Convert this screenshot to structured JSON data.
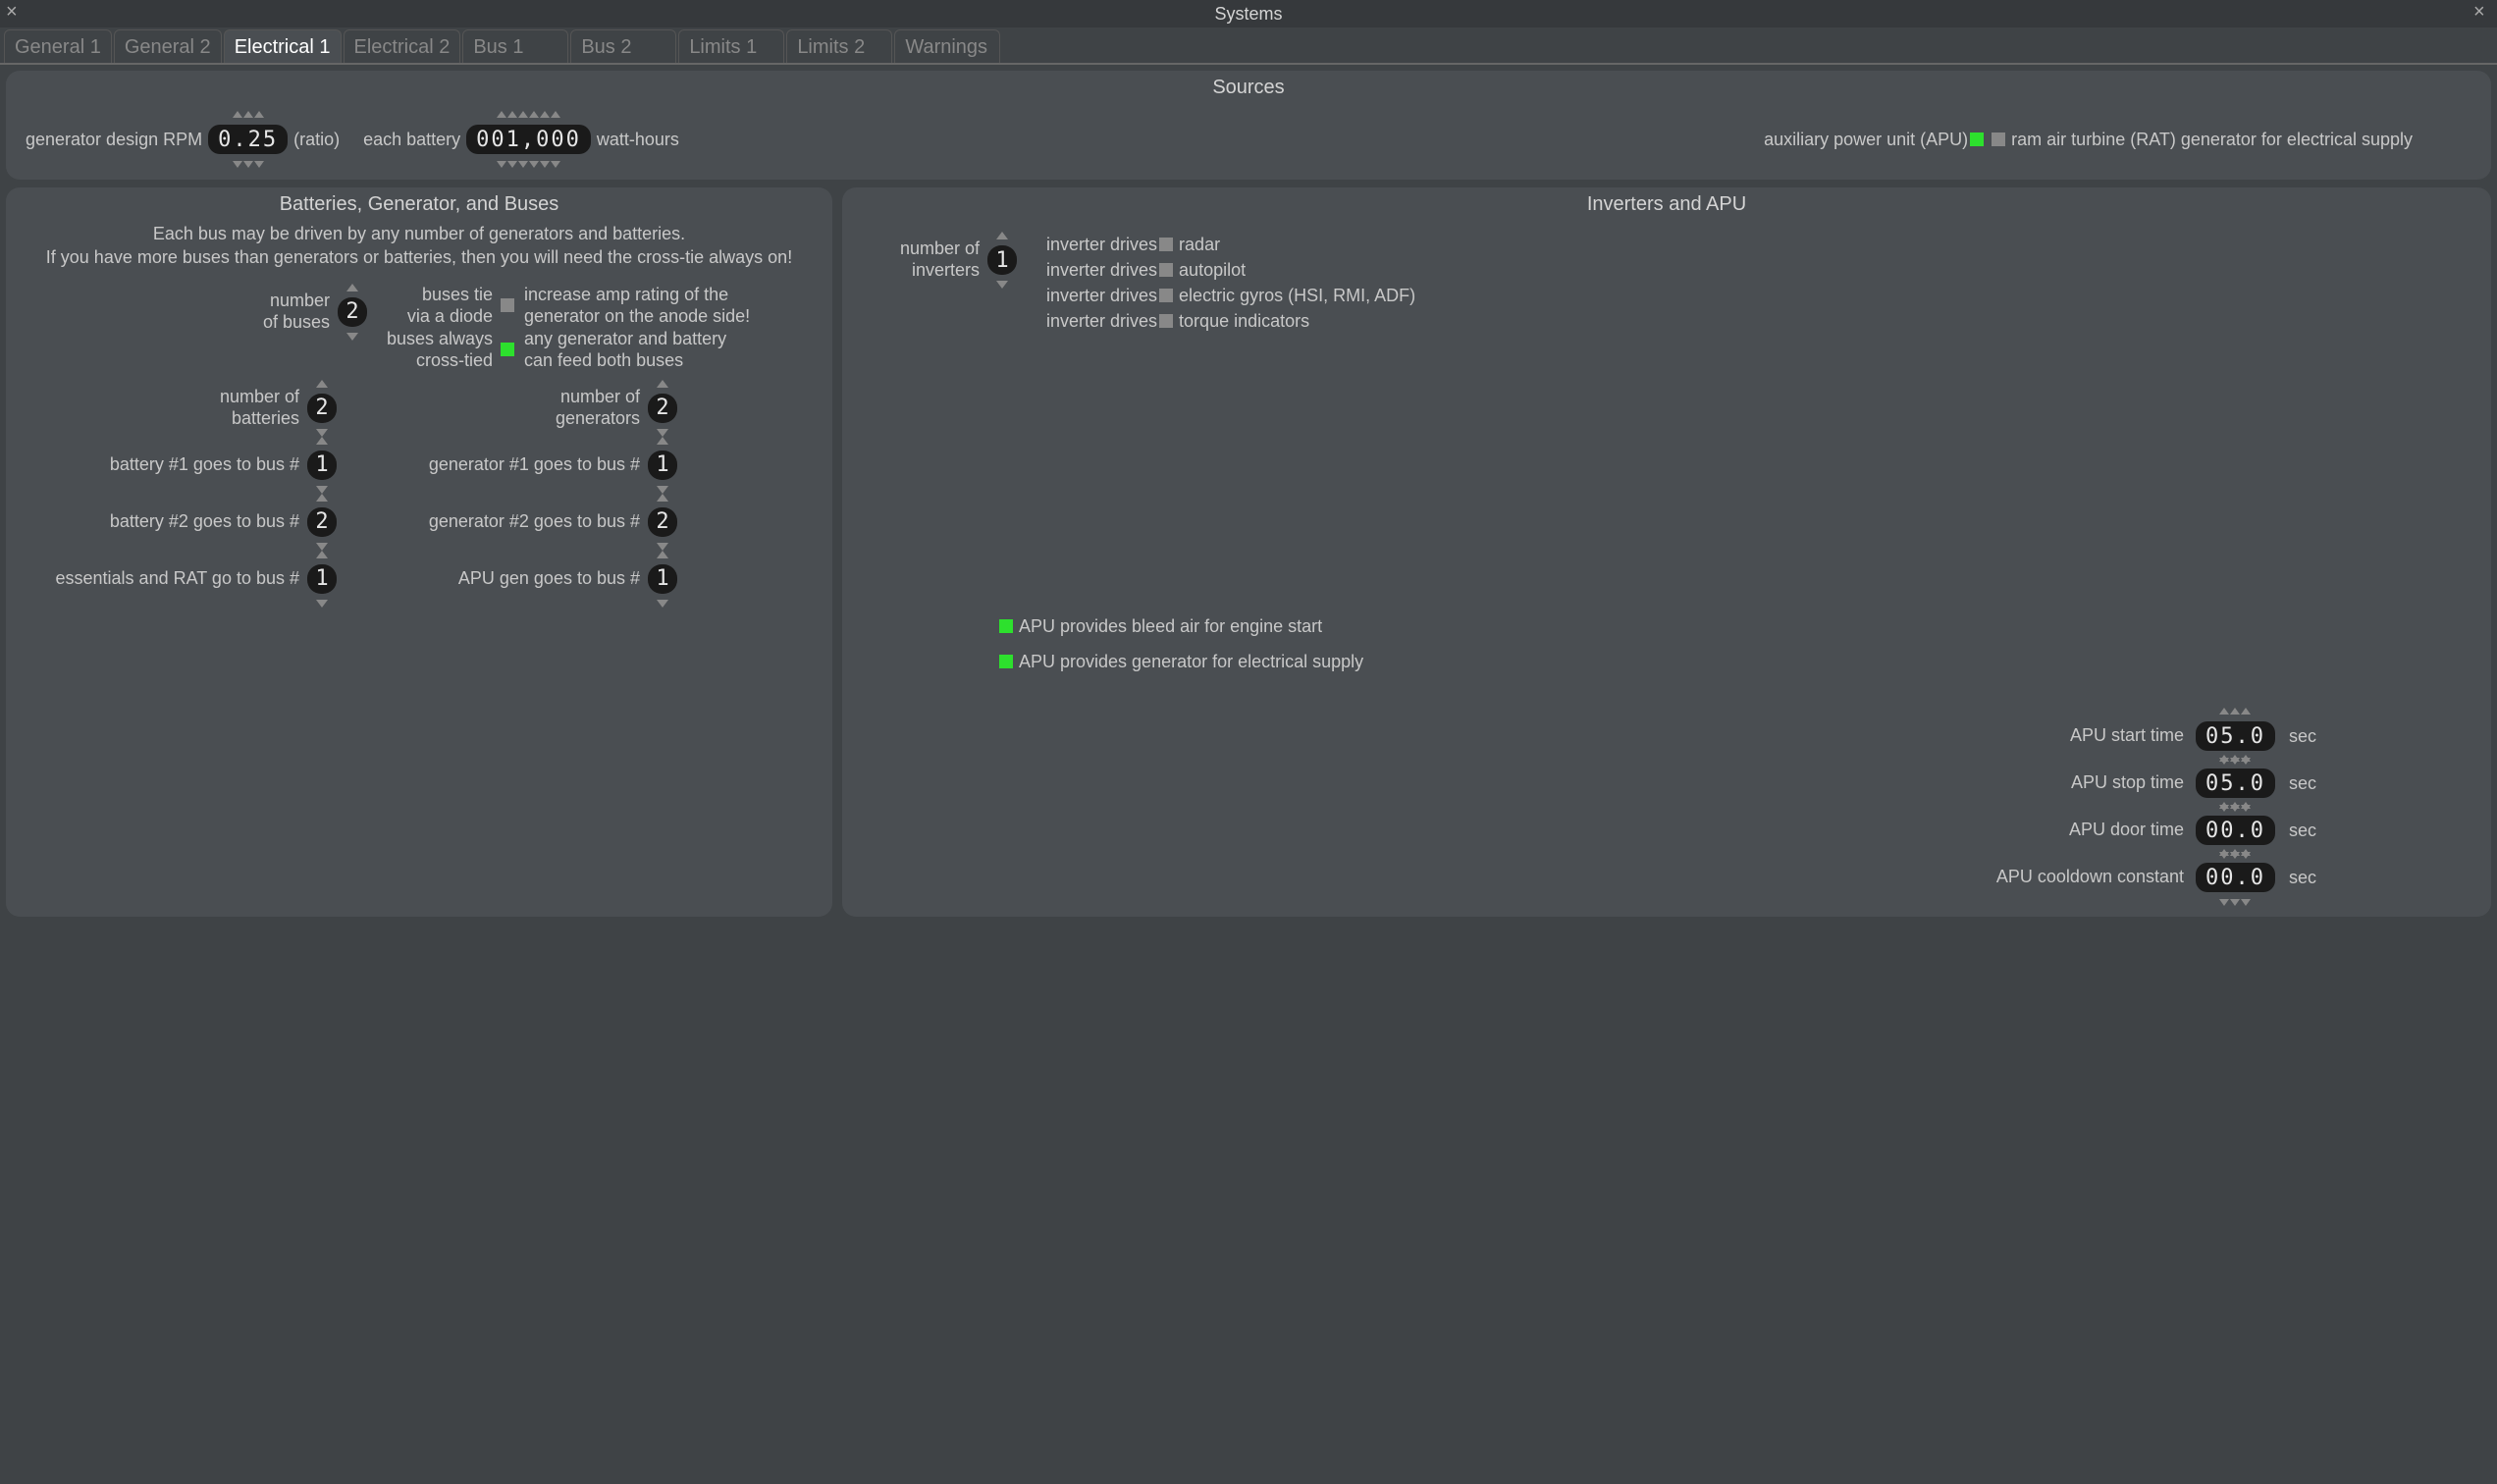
{
  "window": {
    "title": "Systems"
  },
  "tabs": [
    "General 1",
    "General 2",
    "Electrical 1",
    "Electrical 2",
    "Bus 1",
    "Bus 2",
    "Limits 1",
    "Limits 2",
    "Warnings"
  ],
  "active_tab_index": 2,
  "sources": {
    "title": "Sources",
    "gen_rpm_label": "generator design RPM",
    "gen_rpm_value": "0.25",
    "gen_rpm_digits": 3,
    "ratio_label": "(ratio)",
    "each_battery_label": "each battery",
    "battery_wh_value": "001,000",
    "battery_wh_digits": 6,
    "wh_unit": "watt-hours",
    "apu_label": "auxiliary power unit (APU)",
    "apu_checked": true,
    "rat_label": "ram air turbine (RAT) generator for electrical supply",
    "rat_checked": false
  },
  "batteries": {
    "title": "Batteries, Generator, and Buses",
    "subtitle1": "Each bus may be driven by any number of generators and batteries.",
    "subtitle2": "If you have more buses than generators or batteries, then you will need the cross-tie always on!",
    "num_buses_label": "number\nof buses",
    "num_buses": "2",
    "diode_lbl_left": "buses tie\nvia a diode",
    "diode_checked": false,
    "diode_lbl_right": "increase amp rating of the\ngenerator on the anode side!",
    "crosstie_lbl_left": "buses always\ncross-tied",
    "crosstie_checked": true,
    "crosstie_lbl_right": "any generator and battery\ncan feed both buses",
    "num_batt_label": "number of\nbatteries",
    "num_batt": "2",
    "num_gen_label": "number of\ngenerators",
    "num_gen": "2",
    "batt1_label": "battery #1 goes to bus #",
    "batt1_bus": "1",
    "gen1_label": "generator #1 goes to bus #",
    "gen1_bus": "1",
    "batt2_label": "battery #2 goes to bus #",
    "batt2_bus": "2",
    "gen2_label": "generator #2 goes to bus #",
    "gen2_bus": "2",
    "ess_label": "essentials and RAT go to bus #",
    "ess_bus": "1",
    "apugen_label": "APU gen goes to bus #",
    "apugen_bus": "1"
  },
  "inverters": {
    "title": "Inverters and APU",
    "num_inv_label": "number of\ninverters",
    "num_inv": "1",
    "drives_label": "inverter drives",
    "opts": [
      {
        "label": "radar",
        "checked": false
      },
      {
        "label": "autopilot",
        "checked": false
      },
      {
        "label": "electric gyros (HSI, RMI, ADF)",
        "checked": false
      },
      {
        "label": "torque indicators",
        "checked": false
      }
    ],
    "apu_bleed": {
      "label": "APU provides bleed air for engine start",
      "checked": true
    },
    "apu_gen": {
      "label": "APU provides generator for electrical supply",
      "checked": true
    },
    "apu_start_label": "APU start time",
    "apu_start": "05.0",
    "apu_start_digits": 3,
    "apu_stop_label": "APU stop time",
    "apu_stop": "05.0",
    "apu_stop_digits": 3,
    "apu_door_label": "APU door time",
    "apu_door": "00.0",
    "apu_door_digits": 3,
    "apu_cool_label": "APU cooldown constant",
    "apu_cool": "00.0",
    "apu_cool_digits": 3,
    "sec_unit": "sec"
  },
  "colors": {
    "bg": "#3f4346",
    "panel": "#4a4e52",
    "text": "#c8c8c8",
    "accent": "#2de02d",
    "pill": "#1a1a1a"
  }
}
